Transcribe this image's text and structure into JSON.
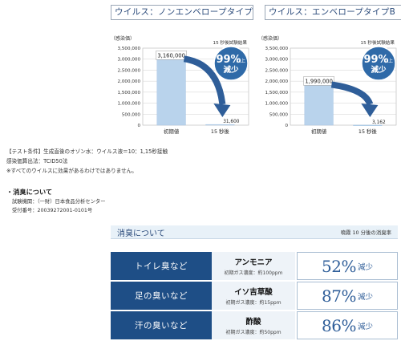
{
  "chart_data": [
    {
      "type": "bar",
      "title": "ウイルス：ノンエンベロープタイプA",
      "ylabel": "（感染価）",
      "note": "15 秒後試験結果",
      "categories": [
        "初期値",
        "15 秒後"
      ],
      "values": [
        3160000,
        31600
      ],
      "value_labels": [
        "3,160,000",
        "31,600"
      ],
      "yticks": [
        "0",
        "500,000",
        "1,000,000",
        "1,500,000",
        "2,000,000",
        "2,500,000",
        "3,000,000",
        "3,500,000"
      ],
      "ylim": [
        0,
        3500000
      ],
      "grid": true,
      "badge": {
        "line1": "99%",
        "line2": "以上",
        "line3": "減少"
      },
      "colors": {
        "bar": "#b9d3ec",
        "arrow": "#2f5e99",
        "badge": "#2f6aa8"
      }
    },
    {
      "type": "bar",
      "title": "ウイルス：エンベロープタイプB",
      "ylabel": "（感染価）",
      "note": "15 秒後試験結果",
      "categories": [
        "初期値",
        "15 秒後"
      ],
      "values": [
        1990000,
        3162
      ],
      "value_labels": [
        "1,990,000",
        "3,162"
      ],
      "yticks": [
        "0",
        "500,000",
        "1,000,000",
        "1,500,000",
        "2,000,000",
        "2,500,000",
        "3,000,000",
        "3,500,000"
      ],
      "ylim": [
        0,
        3500000
      ],
      "grid": true,
      "badge": {
        "line1": "99%",
        "line2": "以上",
        "line3": "減少"
      },
      "colors": {
        "bar": "#b9d3ec",
        "arrow": "#2f5e99",
        "badge": "#2f6aa8"
      }
    }
  ],
  "conditions": {
    "line1": "【テスト条件】生成直後のオゾン水：ウイルス液＝10：1,15秒接触",
    "line2": "感染価算出法：TCID50法",
    "line3": "※すべてのウイルスに効果があるわけではありません。"
  },
  "odor": {
    "heading": "・消臭について",
    "agency": "試験機関：（一財）日本食品分析センター",
    "receipt": "受付番号：20039272001-0101号",
    "bar_title": "消臭について",
    "bar_note": "噴霧 10 分後の消臭率",
    "rows": [
      {
        "label": "トイレ臭など",
        "name": "アンモニア",
        "conc": "初期ガス濃度：約100ppm",
        "pct": "52%",
        "suffix": "減少"
      },
      {
        "label": "足の臭いなど",
        "name": "イソ吉草酸",
        "conc": "初期ガス濃度：約15ppm",
        "pct": "87%",
        "suffix": "減少"
      },
      {
        "label": "汗の臭いなど",
        "name": "酢酸",
        "conc": "初期ガス濃度：約50ppm",
        "pct": "86%",
        "suffix": "減少"
      }
    ]
  }
}
